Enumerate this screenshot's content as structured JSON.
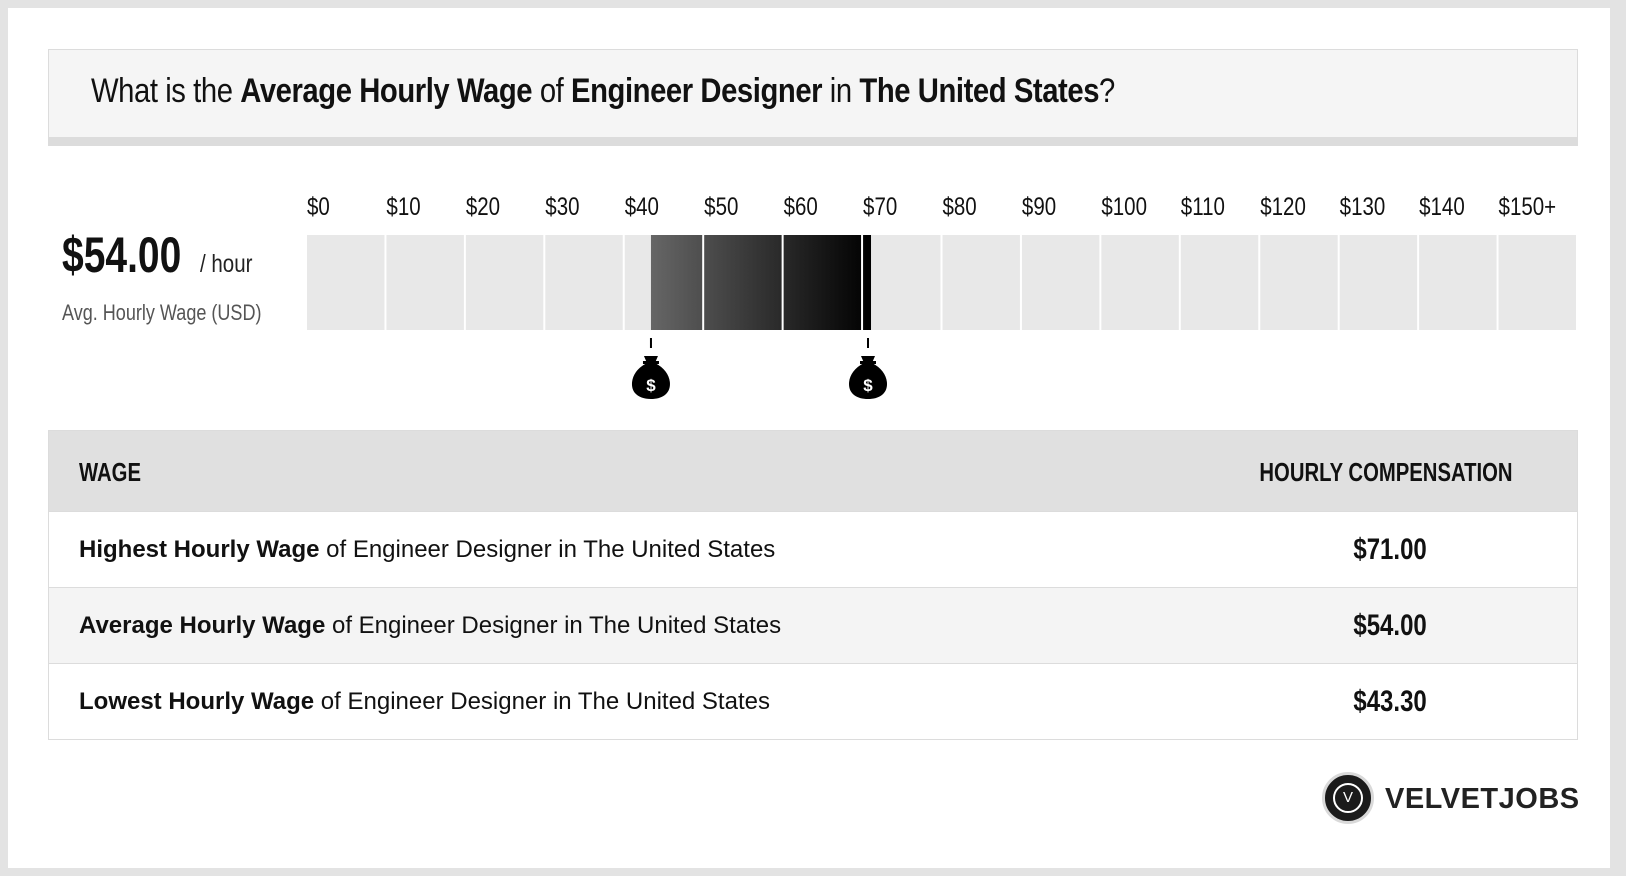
{
  "title": {
    "p1": "What is the ",
    "b1": "Average Hourly Wage",
    "p2": " of ",
    "b2": "Engineer Designer",
    "p3": " in ",
    "b3": "The United States",
    "p4": "?"
  },
  "summary": {
    "value": "$54.00",
    "unit": "/ hour",
    "label": "Avg. Hourly Wage (USD)"
  },
  "chart_data": {
    "type": "bar",
    "orientation": "horizontal-range",
    "categories": [
      "$0",
      "$10",
      "$20",
      "$30",
      "$40",
      "$50",
      "$60",
      "$70",
      "$80",
      "$90",
      "$100",
      "$110",
      "$120",
      "$130",
      "$140",
      "$150+"
    ],
    "range": {
      "low": 43.3,
      "average": 54.0,
      "high": 71.0
    },
    "markers": [
      {
        "value": 43.3,
        "icon": "money-bag-icon",
        "symbol": "$"
      },
      {
        "value": 71.0,
        "icon": "money-bag-icon",
        "symbol": "$"
      }
    ],
    "xlim": [
      0,
      160
    ],
    "colors": {
      "cell": "#e8e8e8",
      "range_start": "#666666",
      "range_end": "#000000"
    }
  },
  "table": {
    "headers": {
      "wage": "WAGE",
      "comp": "HOURLY COMPENSATION"
    },
    "rows": [
      {
        "bold": "Highest Hourly Wage",
        "rest": " of Engineer Designer in The United States",
        "value": "$71.00"
      },
      {
        "bold": "Average Hourly Wage",
        "rest": " of Engineer Designer in The United States",
        "value": "$54.00"
      },
      {
        "bold": "Lowest Hourly Wage",
        "rest": " of Engineer Designer in The United States",
        "value": "$43.30"
      }
    ]
  },
  "brand": {
    "name": "VELVETJOBS",
    "mark": "V"
  }
}
